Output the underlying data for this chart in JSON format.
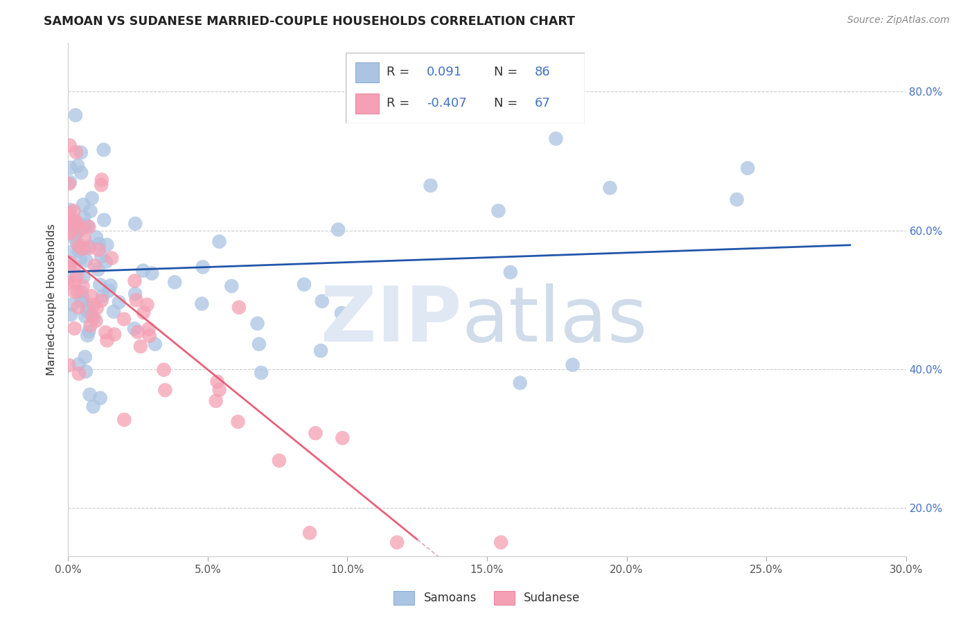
{
  "title": "SAMOAN VS SUDANESE MARRIED-COUPLE HOUSEHOLDS CORRELATION CHART",
  "source": "Source: ZipAtlas.com",
  "ylabel": "Married-couple Households",
  "x_min": 0.0,
  "x_max": 30.0,
  "y_min": 13.0,
  "y_max": 87.0,
  "x_ticks": [
    0.0,
    5.0,
    10.0,
    15.0,
    20.0,
    25.0,
    30.0
  ],
  "y_ticks": [
    20.0,
    40.0,
    60.0,
    80.0
  ],
  "samoan_color": "#aac4e2",
  "sudanese_color": "#f5a0b4",
  "samoan_line_color": "#2255aa",
  "sudanese_line_color": "#e8607a",
  "sudanese_dash_color": "#d0b0b8",
  "legend_text_color": "#4472c4",
  "samoan_R": 0.091,
  "samoan_N": 86,
  "sudanese_R": -0.407,
  "sudanese_N": 67,
  "samoan_intercept": 54.0,
  "samoan_slope": 0.12,
  "sudanese_intercept": 56.0,
  "sudanese_slope": -2.9,
  "sudanese_solid_end": 12.5
}
